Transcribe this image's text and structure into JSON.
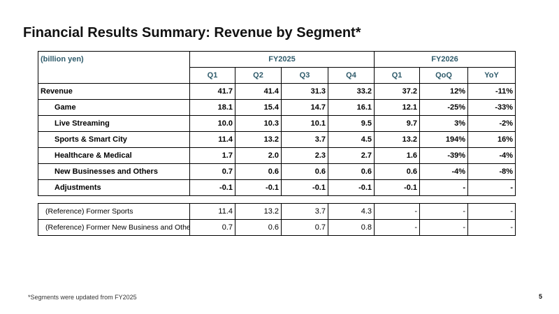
{
  "title": "Financial Results Summary: Revenue by Segment*",
  "table": {
    "unit": "(billion yen)",
    "fy2025": "FY2025",
    "fy2026": "FY2026",
    "cols": [
      "Q1",
      "Q2",
      "Q3",
      "Q4",
      "Q1",
      "QoQ",
      "YoY"
    ],
    "rows": [
      {
        "label": "Revenue",
        "values": [
          "41.7",
          "41.4",
          "31.3",
          "33.2",
          "37.2",
          "12%",
          "-11%"
        ]
      },
      {
        "label": "Game",
        "values": [
          "18.1",
          "15.4",
          "14.7",
          "16.1",
          "12.1",
          "-25%",
          "-33%"
        ]
      },
      {
        "label": "Live Streaming",
        "values": [
          "10.0",
          "10.3",
          "10.1",
          "9.5",
          "9.7",
          "3%",
          "-2%"
        ]
      },
      {
        "label": "Sports & Smart City",
        "values": [
          "11.4",
          "13.2",
          "3.7",
          "4.5",
          "13.2",
          "194%",
          "16%"
        ]
      },
      {
        "label": "Healthcare & Medical",
        "values": [
          "1.7",
          "2.0",
          "2.3",
          "2.7",
          "1.6",
          "-39%",
          "-4%"
        ]
      },
      {
        "label": "New Businesses and Others",
        "values": [
          "0.7",
          "0.6",
          "0.6",
          "0.6",
          "0.6",
          "-4%",
          "-8%"
        ]
      },
      {
        "label": "Adjustments",
        "values": [
          "-0.1",
          "-0.1",
          "-0.1",
          "-0.1",
          "-0.1",
          "-",
          "-"
        ]
      }
    ],
    "ref_rows": [
      {
        "label": "(Reference) Former Sports",
        "values": [
          "11.4",
          "13.2",
          "3.7",
          "4.3",
          "-",
          "-",
          "-"
        ]
      },
      {
        "label": "(Reference) Former New Business and Others",
        "values": [
          "0.7",
          "0.6",
          "0.7",
          "0.8",
          "-",
          "-",
          "-"
        ]
      }
    ]
  },
  "footnote": "*Segments were updated from FY2025",
  "page_number": "5"
}
